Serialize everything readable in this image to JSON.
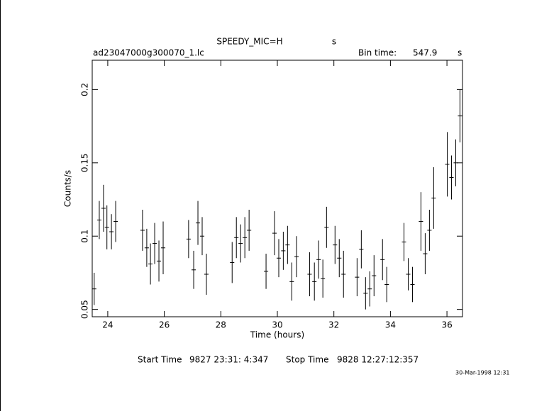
{
  "chart_data": {
    "type": "errorbar",
    "title": "SPEEDY_MIC=H",
    "title_unit": "s",
    "file_name": "ad23047000g300070_1.lc",
    "bin_time_label": "Bin time:",
    "bin_time": 547.9,
    "bin_time_unit": "s",
    "x_label": "Time (hours)",
    "y_label": "Counts/s",
    "start_time_label": "Start Time",
    "start_time": "9827 23:31: 4:347",
    "stop_time_label": "Stop Time",
    "stop_time": "9828 12:27:12:357",
    "date_stamp": "30-Mar-1998 12:31",
    "color": "#000000",
    "xlim": [
      23.45,
      36.55
    ],
    "ylim": [
      0.045,
      0.22
    ],
    "xticks": [
      24,
      26,
      28,
      30,
      32,
      34,
      36
    ],
    "yticks": [
      0.05,
      0.1,
      0.15,
      0.2
    ],
    "xerr": 0.076,
    "x": [
      23.52,
      23.7,
      23.85,
      23.97,
      24.13,
      24.28,
      25.23,
      25.38,
      25.51,
      25.66,
      25.81,
      25.96,
      26.86,
      27.04,
      27.19,
      27.34,
      27.49,
      28.4,
      28.55,
      28.7,
      28.85,
      29.0,
      29.6,
      29.9,
      30.05,
      30.21,
      30.36,
      30.51,
      30.68,
      31.14,
      31.31,
      31.46,
      31.61,
      31.74,
      32.04,
      32.19,
      32.34,
      32.82,
      32.97,
      33.12,
      33.27,
      33.42,
      33.72,
      33.87,
      34.48,
      34.63,
      34.78,
      35.08,
      35.23,
      35.38,
      35.53,
      36.01,
      36.16,
      36.31,
      36.46
    ],
    "values": [
      0.064,
      0.111,
      0.119,
      0.106,
      0.103,
      0.11,
      0.104,
      0.092,
      0.081,
      0.095,
      0.083,
      0.092,
      0.098,
      0.077,
      0.109,
      0.1,
      0.074,
      0.082,
      0.099,
      0.095,
      0.099,
      0.104,
      0.076,
      0.102,
      0.085,
      0.09,
      0.094,
      0.069,
      0.086,
      0.074,
      0.069,
      0.084,
      0.071,
      0.106,
      0.094,
      0.085,
      0.074,
      0.072,
      0.091,
      0.061,
      0.064,
      0.073,
      0.084,
      0.067,
      0.096,
      0.074,
      0.067,
      0.11,
      0.088,
      0.104,
      0.126,
      0.149,
      0.14,
      0.15,
      0.182
    ],
    "errors": [
      0.011,
      0.013,
      0.016,
      0.015,
      0.012,
      0.014,
      0.014,
      0.013,
      0.014,
      0.014,
      0.014,
      0.018,
      0.013,
      0.013,
      0.015,
      0.013,
      0.014,
      0.014,
      0.014,
      0.013,
      0.014,
      0.014,
      0.012,
      0.015,
      0.013,
      0.013,
      0.013,
      0.013,
      0.014,
      0.015,
      0.013,
      0.013,
      0.013,
      0.014,
      0.013,
      0.013,
      0.016,
      0.013,
      0.013,
      0.011,
      0.012,
      0.014,
      0.014,
      0.012,
      0.013,
      0.011,
      0.012,
      0.02,
      0.014,
      0.014,
      0.021,
      0.022,
      0.015,
      0.016,
      0.018
    ]
  }
}
